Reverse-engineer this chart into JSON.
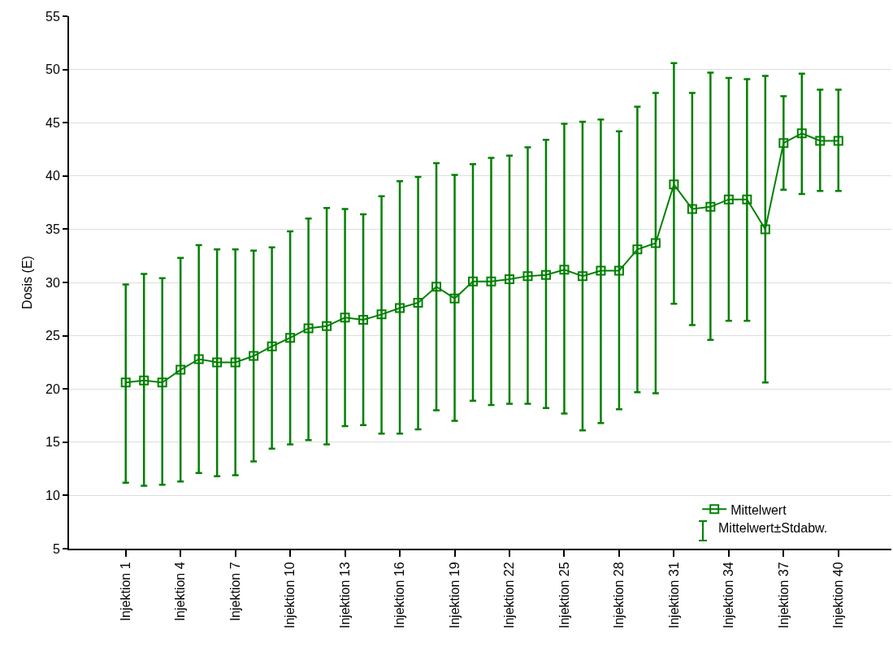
{
  "chart_data": {
    "type": "line",
    "ylabel": "Dosis (E)",
    "categories": [
      "Injektion 1",
      null,
      null,
      "Injektion 4",
      null,
      null,
      "Injektion 7",
      null,
      null,
      "Injektion 10",
      null,
      null,
      "Injektion 13",
      null,
      null,
      "Injektion 16",
      null,
      null,
      "Injektion 19",
      null,
      null,
      "Injektion 22",
      null,
      null,
      "Injektion 25",
      null,
      null,
      "Injektion 28",
      null,
      null,
      "Injektion 31",
      null,
      null,
      "Injektion 34",
      null,
      null,
      "Injektion 37",
      null,
      null,
      "Injektion 40"
    ],
    "series": [
      {
        "name": "Mittelwert",
        "color": "#008000",
        "values": [
          20.6,
          20.8,
          20.6,
          21.8,
          22.8,
          22.5,
          22.5,
          23.1,
          24.0,
          24.8,
          25.7,
          25.9,
          26.7,
          26.5,
          27.0,
          27.6,
          28.1,
          29.6,
          28.5,
          30.1,
          30.1,
          30.3,
          30.6,
          30.7,
          31.2,
          30.6,
          31.1,
          31.1,
          33.1,
          33.7,
          39.2,
          36.9,
          37.1,
          37.8,
          37.8,
          35.0,
          43.1,
          44.0,
          43.3,
          43.3
        ],
        "errors": [
          [
            11.2,
            29.8
          ],
          [
            10.9,
            30.8
          ],
          [
            11.0,
            30.4
          ],
          [
            11.3,
            32.3
          ],
          [
            12.1,
            33.5
          ],
          [
            11.8,
            33.1
          ],
          [
            11.9,
            33.1
          ],
          [
            13.2,
            33.0
          ],
          [
            14.4,
            33.3
          ],
          [
            14.8,
            34.8
          ],
          [
            15.2,
            36.0
          ],
          [
            14.8,
            37.0
          ],
          [
            16.5,
            36.9
          ],
          [
            16.6,
            36.4
          ],
          [
            15.8,
            38.1
          ],
          [
            15.8,
            39.5
          ],
          [
            16.2,
            39.9
          ],
          [
            18.0,
            41.2
          ],
          [
            17.0,
            40.1
          ],
          [
            18.9,
            41.1
          ],
          [
            18.5,
            41.7
          ],
          [
            18.6,
            41.9
          ],
          [
            18.6,
            42.7
          ],
          [
            18.2,
            43.4
          ],
          [
            17.7,
            44.9
          ],
          [
            16.1,
            45.1
          ],
          [
            16.8,
            45.3
          ],
          [
            18.1,
            44.2
          ],
          [
            19.7,
            46.5
          ],
          [
            19.6,
            47.8
          ],
          [
            28.0,
            50.6
          ],
          [
            26.0,
            47.8
          ],
          [
            24.6,
            49.7
          ],
          [
            26.4,
            49.2
          ],
          [
            26.4,
            49.1
          ],
          [
            20.6,
            49.4
          ],
          [
            38.7,
            47.5
          ],
          [
            38.3,
            49.6
          ],
          [
            38.6,
            48.1
          ],
          [
            38.6,
            48.1
          ]
        ]
      }
    ],
    "ylim": [
      5,
      55
    ],
    "yticks": [
      5,
      10,
      15,
      20,
      25,
      30,
      35,
      40,
      45,
      50,
      55
    ],
    "grid": "y",
    "legend": "bottom right",
    "marker": "square",
    "line_style": "solid",
    "annotations": [
      "Mittelwert±Stdabw."
    ]
  }
}
